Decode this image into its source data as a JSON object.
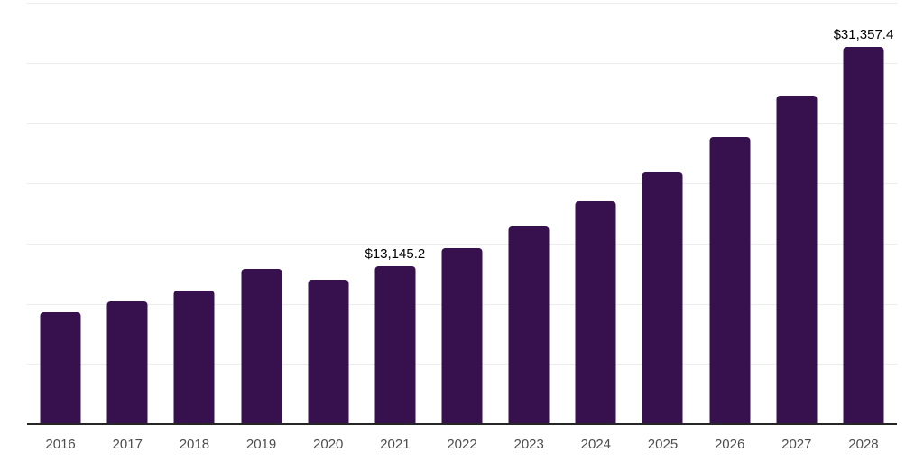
{
  "chart_data": {
    "type": "bar",
    "title": "",
    "xlabel": "",
    "ylabel": "",
    "categories": [
      "2016",
      "2017",
      "2018",
      "2019",
      "2020",
      "2021",
      "2022",
      "2023",
      "2024",
      "2025",
      "2026",
      "2027",
      "2028"
    ],
    "values": [
      9260,
      10180,
      11130,
      12920,
      12000,
      13145.2,
      14640,
      16380,
      18490,
      20880,
      23840,
      27270,
      31357.4
    ],
    "value_labels": [
      "",
      "",
      "",
      "",
      "",
      "$13,145.2",
      "",
      "",
      "",
      "",
      "",
      "",
      "$31,357.4"
    ],
    "value_prefix": "$",
    "ylim": [
      0,
      35000
    ],
    "gridline_step": 5000,
    "grid": "horizontal",
    "legend_position": "none",
    "colors": {
      "bar": "#37114E",
      "gridline": "#ECECEC",
      "axis_line": "#262626",
      "tick_label": "#4D4D4D",
      "value_label": "#000000",
      "background": "#FFFFFF"
    }
  }
}
